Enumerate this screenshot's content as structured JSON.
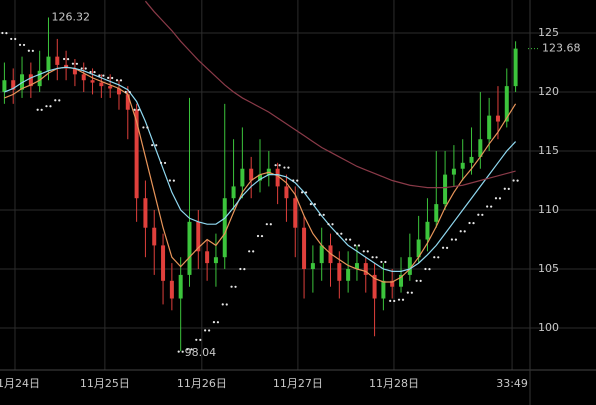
{
  "chart_data": {
    "type": "candlestick",
    "categories": [
      null,
      null,
      null,
      null,
      null,
      null,
      null,
      null,
      null,
      null,
      null,
      null,
      null,
      null,
      null,
      null,
      null,
      null,
      null,
      null,
      null,
      null,
      null,
      null,
      null,
      null,
      null,
      null,
      null,
      null,
      null,
      null,
      null,
      null,
      null,
      null,
      null,
      null,
      null,
      null,
      null,
      null,
      null,
      null,
      null,
      null,
      null,
      null,
      null,
      null,
      null,
      null,
      null,
      null,
      null,
      null,
      null,
      null,
      null
    ],
    "open": [
      120.0,
      121.0,
      120.2,
      121.5,
      120.5,
      121.8,
      123.0,
      122.3,
      122.0,
      121.5,
      121.0,
      120.8,
      120.5,
      120.3,
      119.8,
      118.5,
      111.0,
      108.5,
      107.0,
      104.0,
      102.5,
      104.5,
      109.0,
      106.5,
      105.5,
      106.0,
      111.0,
      112.0,
      113.5,
      112.5,
      113.0,
      113.5,
      112.0,
      111.0,
      108.5,
      105.0,
      105.5,
      107.0,
      105.5,
      104.0,
      105.0,
      105.5,
      104.5,
      102.5,
      104.0,
      103.5,
      104.5,
      106.0,
      107.5,
      109.0,
      110.5,
      113.0,
      113.5,
      114.0,
      114.5,
      116.0,
      118.0,
      117.5,
      120.5
    ],
    "high": [
      122.5,
      122.0,
      123.0,
      122.5,
      123.5,
      126.32,
      124.5,
      123.5,
      122.8,
      122.5,
      122.0,
      121.5,
      121.5,
      121.0,
      120.5,
      119.0,
      112.5,
      110.0,
      108.0,
      105.5,
      106.0,
      119.5,
      110.0,
      107.5,
      108.0,
      119.0,
      116.0,
      117.0,
      114.5,
      116.0,
      115.0,
      114.0,
      113.0,
      112.0,
      109.5,
      107.0,
      108.5,
      108.0,
      106.5,
      106.5,
      107.0,
      106.0,
      105.5,
      105.5,
      105.0,
      106.0,
      108.0,
      109.5,
      111.0,
      115.0,
      115.0,
      115.5,
      116.0,
      117.0,
      120.0,
      119.5,
      120.5,
      122.0,
      124.3
    ],
    "low": [
      119.0,
      119.0,
      119.5,
      119.5,
      120.0,
      121.0,
      121.0,
      121.0,
      120.5,
      120.0,
      119.8,
      119.5,
      119.5,
      118.5,
      116.0,
      109.0,
      106.0,
      104.5,
      102.0,
      101.5,
      98.04,
      103.5,
      105.0,
      104.0,
      103.5,
      105.0,
      110.0,
      111.0,
      111.0,
      111.5,
      112.0,
      110.5,
      109.0,
      106.0,
      102.5,
      103.0,
      104.0,
      103.5,
      102.5,
      103.0,
      104.0,
      103.0,
      99.3,
      101.5,
      102.5,
      103.0,
      104.0,
      105.5,
      106.5,
      108.5,
      110.0,
      112.0,
      112.5,
      113.0,
      113.5,
      115.0,
      116.0,
      117.0,
      120.0
    ],
    "close": [
      121.0,
      120.2,
      121.5,
      120.5,
      121.8,
      123.0,
      122.3,
      122.0,
      121.5,
      121.0,
      120.8,
      120.5,
      120.3,
      119.8,
      118.5,
      111.0,
      108.5,
      107.0,
      104.0,
      102.5,
      104.5,
      109.0,
      106.5,
      105.5,
      106.0,
      111.0,
      112.0,
      113.5,
      112.5,
      113.0,
      113.5,
      112.0,
      111.0,
      108.5,
      105.0,
      105.5,
      107.0,
      105.5,
      104.0,
      105.0,
      105.5,
      104.5,
      102.5,
      104.0,
      103.5,
      104.5,
      106.0,
      107.5,
      109.0,
      110.5,
      113.0,
      113.5,
      114.0,
      114.5,
      116.0,
      118.0,
      117.5,
      120.5,
      123.68
    ],
    "up_color": "#3cc43c",
    "down_color": "#e0403c",
    "overlays": [
      {
        "color": "#e8955a",
        "values": [
          119.5,
          119.8,
          120.3,
          120.6,
          121.0,
          121.6,
          122.0,
          122.1,
          122.0,
          121.6,
          121.2,
          120.9,
          120.6,
          120.3,
          119.8,
          117.5,
          114.5,
          111.5,
          108.5,
          106.0,
          105.2,
          106.0,
          106.8,
          107.5,
          107.0,
          108.0,
          109.8,
          111.5,
          112.5,
          113.0,
          113.2,
          112.9,
          112.3,
          111.3,
          109.5,
          108.0,
          107.0,
          106.3,
          105.8,
          105.3,
          105.0,
          104.8,
          104.2,
          103.9,
          103.9,
          104.3,
          105.0,
          106.0,
          107.2,
          108.6,
          110.2,
          111.5,
          112.6,
          113.5,
          114.5,
          115.6,
          116.6,
          117.8,
          119.0
        ]
      },
      {
        "color": "#8fd8f0",
        "values": [
          120.0,
          120.3,
          120.8,
          121.2,
          121.5,
          121.8,
          122.0,
          122.1,
          122.0,
          121.8,
          121.5,
          121.2,
          120.9,
          120.6,
          120.2,
          119.2,
          117.5,
          115.5,
          113.5,
          111.5,
          110.0,
          109.3,
          109.0,
          108.8,
          108.8,
          109.3,
          110.2,
          111.2,
          112.0,
          112.6,
          113.0,
          113.0,
          112.8,
          112.3,
          111.5,
          110.5,
          109.5,
          108.6,
          107.8,
          107.0,
          106.5,
          106.0,
          105.5,
          105.0,
          104.8,
          104.8,
          105.0,
          105.5,
          106.2,
          107.0,
          108.0,
          109.0,
          110.0,
          111.0,
          112.0,
          113.0,
          114.0,
          115.0,
          115.8
        ]
      },
      {
        "color": "#8a3a48",
        "values": [
          null,
          null,
          null,
          null,
          null,
          null,
          null,
          null,
          null,
          null,
          null,
          null,
          null,
          null,
          null,
          null,
          127.7,
          126.8,
          126.0,
          125.2,
          124.3,
          123.5,
          122.7,
          122.0,
          121.3,
          120.6,
          120.0,
          119.5,
          119.1,
          118.7,
          118.3,
          117.8,
          117.3,
          116.8,
          116.3,
          115.8,
          115.3,
          114.9,
          114.5,
          114.1,
          113.7,
          113.4,
          113.1,
          112.8,
          112.5,
          112.3,
          112.1,
          112.0,
          111.9,
          111.9,
          111.9,
          112.0,
          112.1,
          112.3,
          112.5,
          112.7,
          112.9,
          113.1,
          113.3
        ]
      }
    ],
    "sar": {
      "color": "#e8e8e8",
      "values": [
        125.0,
        124.5,
        124.0,
        123.5,
        118.5,
        118.8,
        119.3,
        122.8,
        122.4,
        122.0,
        121.7,
        121.4,
        121.2,
        121.0,
        120.0,
        118.5,
        117.0,
        115.5,
        114.0,
        112.5,
        98.0,
        98.2,
        99.0,
        99.8,
        100.5,
        102.0,
        103.5,
        105.0,
        106.5,
        107.8,
        108.8,
        113.8,
        113.6,
        112.5,
        111.5,
        110.5,
        109.6,
        108.8,
        108.0,
        107.5,
        107.0,
        106.5,
        106.0,
        105.6,
        102.3,
        102.4,
        103.0,
        104.0,
        105.0,
        106.0,
        106.8,
        107.5,
        108.2,
        108.9,
        109.6,
        110.3,
        111.0,
        111.8,
        112.5
      ]
    },
    "high_annotation": 126.32,
    "low_annotation": 98.04,
    "last_price": 123.68,
    "ylim": [
      96.44,
      127.8
    ],
    "yticks": [
      100,
      105,
      110,
      115,
      120,
      125
    ],
    "xticks": [
      {
        "value": 1.2,
        "label": "11月24日"
      },
      {
        "value": 11.4,
        "label": "11月25日"
      },
      {
        "value": 22.4,
        "label": "11月26日"
      },
      {
        "value": 33.3,
        "label": "11月27日"
      },
      {
        "value": 44.2,
        "label": "11月28日"
      },
      {
        "value": 57.6,
        "label": "33:49"
      }
    ],
    "grid": true
  }
}
